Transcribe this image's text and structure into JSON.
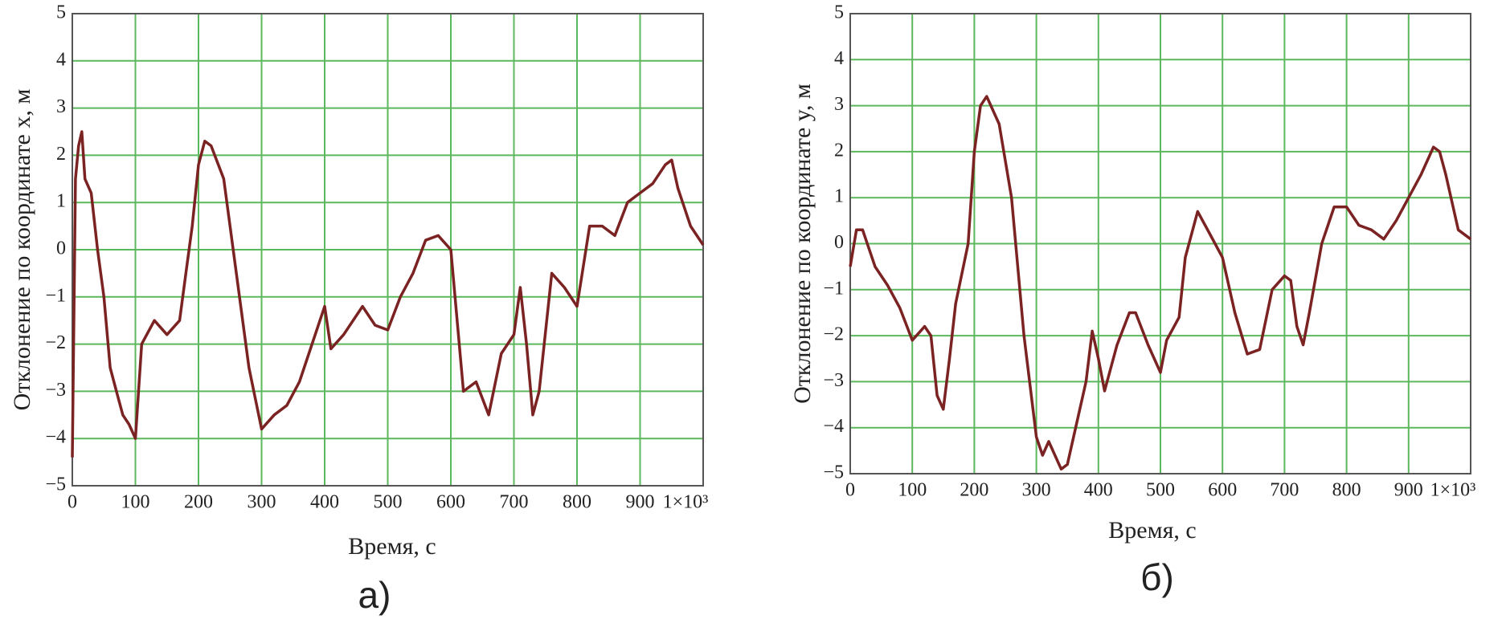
{
  "chart_data": [
    {
      "type": "line",
      "y_label": "Отклонение по координате x, м",
      "x_label": "Время, с",
      "caption": "а)",
      "color": "#7b2222",
      "grid": true,
      "x": [
        0,
        5,
        10,
        15,
        20,
        30,
        40,
        50,
        60,
        70,
        80,
        90,
        100,
        110,
        130,
        150,
        170,
        180,
        190,
        200,
        210,
        220,
        240,
        260,
        280,
        300,
        320,
        340,
        360,
        380,
        400,
        410,
        430,
        460,
        480,
        500,
        520,
        540,
        560,
        580,
        600,
        620,
        640,
        660,
        680,
        700,
        710,
        720,
        730,
        740,
        760,
        780,
        800,
        820,
        840,
        860,
        880,
        900,
        920,
        940,
        950,
        960,
        980,
        1000
      ],
      "values": [
        -4.4,
        1.5,
        2.2,
        2.5,
        1.5,
        1.2,
        0,
        -1,
        -2.5,
        -3,
        -3.5,
        -3.7,
        -4,
        -2,
        -1.5,
        -1.8,
        -1.5,
        -0.5,
        0.5,
        1.8,
        2.3,
        2.2,
        1.5,
        -0.5,
        -2.5,
        -3.8,
        -3.5,
        -3.3,
        -2.8,
        -2,
        -1.2,
        -2.1,
        -1.8,
        -1.2,
        -1.6,
        -1.7,
        -1,
        -0.5,
        0.2,
        0.3,
        0,
        -3,
        -2.8,
        -3.5,
        -2.2,
        -1.8,
        -0.8,
        -2,
        -3.5,
        -3,
        -0.5,
        -0.8,
        -1.2,
        0.5,
        0.5,
        0.3,
        1,
        1.2,
        1.4,
        1.8,
        1.9,
        1.3,
        0.5,
        0.1
      ],
      "xlim": [
        0,
        1000
      ],
      "ylim": [
        -5,
        5
      ],
      "xticks": [
        0,
        100,
        200,
        300,
        400,
        500,
        600,
        700,
        800,
        900,
        {
          "value": 1000,
          "label": "1×10³"
        }
      ],
      "yticks": [
        {
          "value": -5,
          "label": "−5"
        },
        {
          "value": -4,
          "label": "−4"
        },
        {
          "value": -3,
          "label": "−3"
        },
        {
          "value": -2,
          "label": "−2"
        },
        {
          "value": -1,
          "label": "−1"
        },
        0,
        1,
        2,
        3,
        4,
        5
      ]
    },
    {
      "type": "line",
      "y_label": "Отклонение по координате y, м",
      "x_label": "Время, с",
      "caption": "б)",
      "color": "#7b2222",
      "grid": true,
      "x": [
        0,
        10,
        20,
        40,
        60,
        80,
        100,
        120,
        130,
        140,
        150,
        160,
        170,
        190,
        200,
        210,
        220,
        240,
        260,
        280,
        300,
        310,
        320,
        340,
        350,
        360,
        380,
        390,
        400,
        410,
        430,
        450,
        460,
        480,
        500,
        510,
        530,
        540,
        560,
        580,
        600,
        620,
        640,
        660,
        680,
        700,
        710,
        720,
        730,
        740,
        760,
        780,
        800,
        820,
        840,
        860,
        880,
        900,
        920,
        940,
        950,
        960,
        980,
        1000
      ],
      "values": [
        -0.5,
        0.3,
        0.3,
        -0.5,
        -0.9,
        -1.4,
        -2.1,
        -1.8,
        -2,
        -3.3,
        -3.6,
        -2.5,
        -1.3,
        0,
        2,
        3,
        3.2,
        2.6,
        1,
        -2,
        -4.2,
        -4.6,
        -4.3,
        -4.9,
        -4.8,
        -4.2,
        -3,
        -1.9,
        -2.5,
        -3.2,
        -2.2,
        -1.5,
        -1.5,
        -2.2,
        -2.8,
        -2.1,
        -1.6,
        -0.3,
        0.7,
        0.2,
        -0.3,
        -1.5,
        -2.4,
        -2.3,
        -1,
        -0.7,
        -0.8,
        -1.8,
        -2.2,
        -1.5,
        0,
        0.8,
        0.8,
        0.4,
        0.3,
        0.1,
        0.5,
        1,
        1.5,
        2.1,
        2,
        1.5,
        0.3,
        0.1
      ],
      "xlim": [
        0,
        1000
      ],
      "ylim": [
        -5,
        5
      ],
      "xticks": [
        0,
        100,
        200,
        300,
        400,
        500,
        600,
        700,
        800,
        900,
        {
          "value": 1000,
          "label": "1×10³"
        }
      ],
      "yticks": [
        {
          "value": -5,
          "label": "−5"
        },
        {
          "value": -4,
          "label": "−4"
        },
        {
          "value": -3,
          "label": "−3"
        },
        {
          "value": -2,
          "label": "−2"
        },
        {
          "value": -1,
          "label": "−1"
        },
        0,
        1,
        2,
        3,
        4,
        5
      ]
    }
  ]
}
